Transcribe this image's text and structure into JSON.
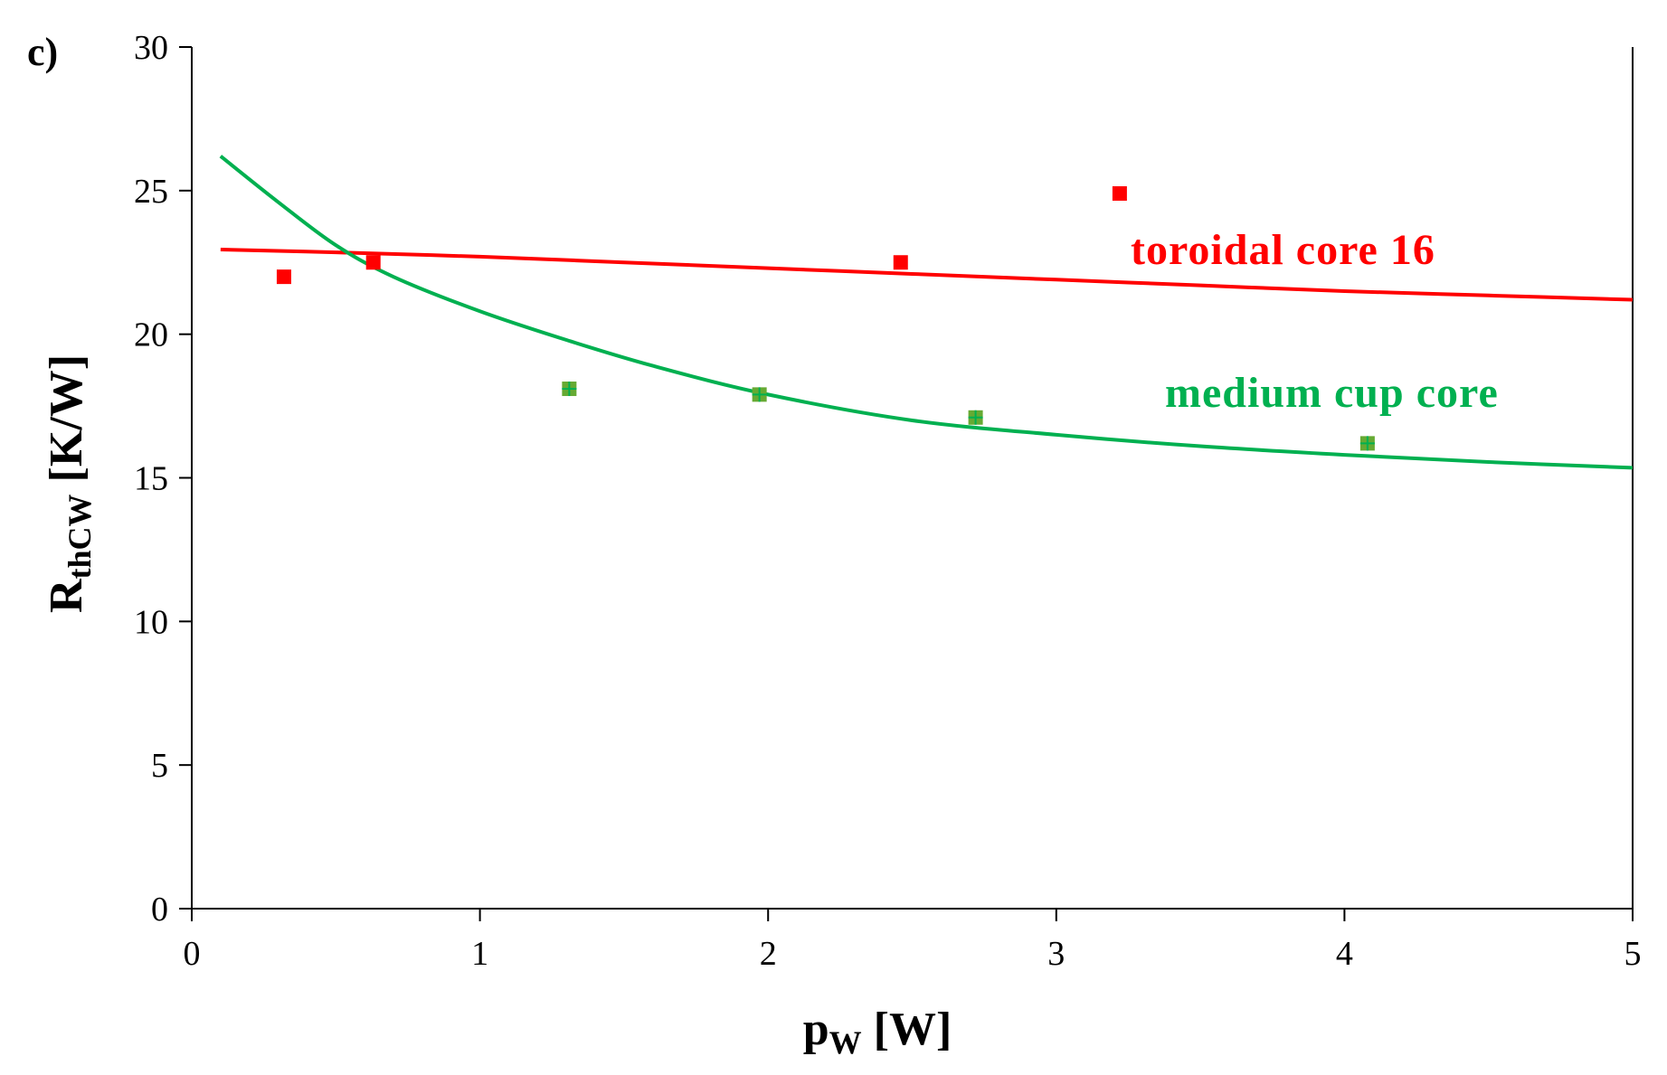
{
  "chart_data": {
    "type": "scatter",
    "panel_label": "c)",
    "xlabel": {
      "main": "p",
      "sub": "W",
      "unit": " [W]"
    },
    "ylabel": {
      "main": "R",
      "sub": "thCW",
      "unit": " [K/W]"
    },
    "xlim": [
      0,
      5
    ],
    "ylim": [
      0,
      30
    ],
    "xticks": [
      0,
      1,
      2,
      3,
      4,
      5
    ],
    "yticks": [
      0,
      5,
      10,
      15,
      20,
      25,
      30
    ],
    "x_tick_labels": [
      "0",
      "1",
      "2",
      "3",
      "4",
      "5"
    ],
    "y_tick_labels": [
      "0",
      "5",
      "10",
      "15",
      "20",
      "25",
      "30"
    ],
    "grid": false,
    "series": [
      {
        "name": "toroidal core 16",
        "color": "#ff0000",
        "marker": "square",
        "points": [
          {
            "x": 0.32,
            "y": 22.0
          },
          {
            "x": 0.63,
            "y": 22.5
          },
          {
            "x": 2.46,
            "y": 22.5
          },
          {
            "x": 3.22,
            "y": 24.9
          }
        ],
        "fit": {
          "x": [
            0.1,
            0.5,
            1.0,
            1.5,
            2.0,
            2.5,
            3.0,
            3.5,
            4.0,
            4.5,
            5.0
          ],
          "y": [
            22.95,
            22.85,
            22.7,
            22.5,
            22.3,
            22.1,
            21.9,
            21.7,
            21.5,
            21.35,
            21.2
          ]
        }
      },
      {
        "name": "medium cup core",
        "color": "#00b050",
        "marker": "square",
        "marker_color": "#66aa33",
        "points": [
          {
            "x": 1.31,
            "y": 18.1
          },
          {
            "x": 1.97,
            "y": 17.9
          },
          {
            "x": 2.72,
            "y": 17.1
          },
          {
            "x": 4.08,
            "y": 16.2
          }
        ],
        "fit": {
          "x": [
            0.1,
            0.3,
            0.5,
            0.7,
            1.0,
            1.3,
            1.6,
            2.0,
            2.5,
            3.0,
            3.5,
            4.0,
            4.5,
            5.0
          ],
          "y": [
            26.2,
            24.6,
            23.1,
            22.0,
            20.8,
            19.8,
            18.9,
            17.9,
            17.0,
            16.5,
            16.1,
            15.8,
            15.55,
            15.35
          ]
        }
      }
    ]
  }
}
